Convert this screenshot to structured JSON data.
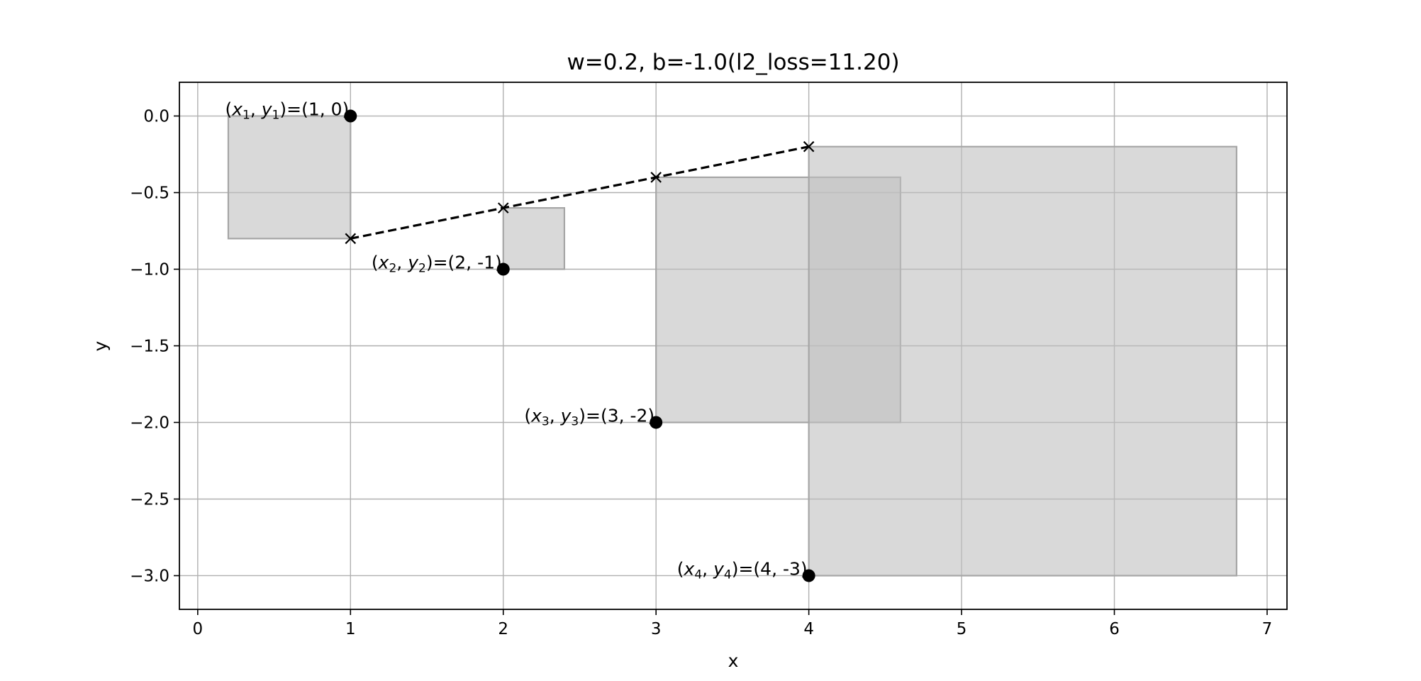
{
  "chart_data": {
    "type": "scatter",
    "title": "w=0.2, b=-1.0(l2_loss=11.20)",
    "xlabel": "x",
    "ylabel": "y",
    "xlim": [
      -0.12,
      7.13
    ],
    "ylim": [
      -3.22,
      0.22
    ],
    "grid": true,
    "xticks": [
      0,
      1,
      2,
      3,
      4,
      5,
      6,
      7
    ],
    "xtick_labels": [
      "0",
      "1",
      "2",
      "3",
      "4",
      "5",
      "6",
      "7"
    ],
    "yticks": [
      0.0,
      -0.5,
      -1.0,
      -1.5,
      -2.0,
      -2.5,
      -3.0
    ],
    "ytick_labels": [
      "0.0",
      "−0.5",
      "−1.0",
      "−1.5",
      "−2.0",
      "−2.5",
      "−3.0"
    ],
    "points": [
      {
        "x": 1,
        "y": 0,
        "label": {
          "p1": "(",
          "xv": "x",
          "s1": "1",
          "mid": ", ",
          "yv": "y",
          "s2": "1",
          "rest": ")=(1, 0)"
        }
      },
      {
        "x": 2,
        "y": -1,
        "label": {
          "p1": "(",
          "xv": "x",
          "s1": "2",
          "mid": ", ",
          "yv": "y",
          "s2": "2",
          "rest": ")=(2, -1)"
        }
      },
      {
        "x": 3,
        "y": -2,
        "label": {
          "p1": "(",
          "xv": "x",
          "s1": "3",
          "mid": ", ",
          "yv": "y",
          "s2": "3",
          "rest": ")=(3, -2)"
        }
      },
      {
        "x": 4,
        "y": -3,
        "label": {
          "p1": "(",
          "xv": "x",
          "s1": "4",
          "mid": ", ",
          "yv": "y",
          "s2": "4",
          "rest": ")=(4, -3)"
        }
      }
    ],
    "predictions": [
      {
        "x": 1,
        "y": -0.8
      },
      {
        "x": 2,
        "y": -0.6
      },
      {
        "x": 3,
        "y": -0.4
      },
      {
        "x": 4,
        "y": -0.2
      }
    ],
    "squares": [
      {
        "x0": 0.2,
        "x1": 1.0,
        "y0": -0.8,
        "y1": 0.0
      },
      {
        "x0": 2.0,
        "x1": 2.4,
        "y0": -1.0,
        "y1": -0.6
      },
      {
        "x0": 3.0,
        "x1": 4.6,
        "y0": -2.0,
        "y1": -0.4
      },
      {
        "x0": 4.0,
        "x1": 6.8,
        "y0": -3.0,
        "y1": -0.2
      }
    ],
    "colors": {
      "square_fill": "#bfbfbf",
      "square_edge": "#a6a6a6",
      "grid": "#b0b0b0",
      "line": "#000000",
      "point": "#000000"
    }
  }
}
